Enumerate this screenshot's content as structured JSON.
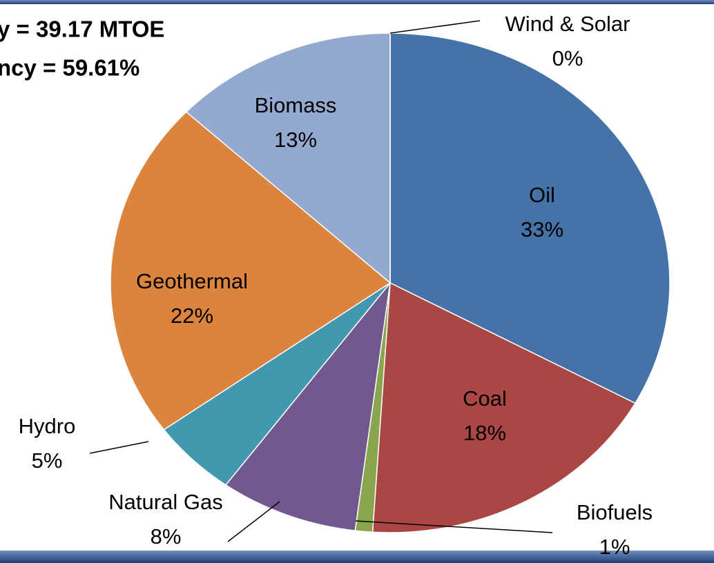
{
  "chart_data": {
    "type": "pie",
    "annotations": [
      "y = 39.17 MTOE",
      "ncy = 59.61%"
    ],
    "categories": [
      "Oil",
      "Coal",
      "Biofuels",
      "Natural Gas",
      "Hydro",
      "Geothermal",
      "Biomass",
      "Wind & Solar"
    ],
    "values": [
      33,
      18,
      1,
      8,
      5,
      22,
      13,
      0
    ],
    "value_labels": [
      "33%",
      "18%",
      "1%",
      "8%",
      "5%",
      "22%",
      "13%",
      "0%"
    ],
    "colors": [
      "#4572a7",
      "#aa4643",
      "#89a54e",
      "#71588f",
      "#4198af",
      "#db843d",
      "#93a9cf",
      "#b9cde5"
    ]
  }
}
